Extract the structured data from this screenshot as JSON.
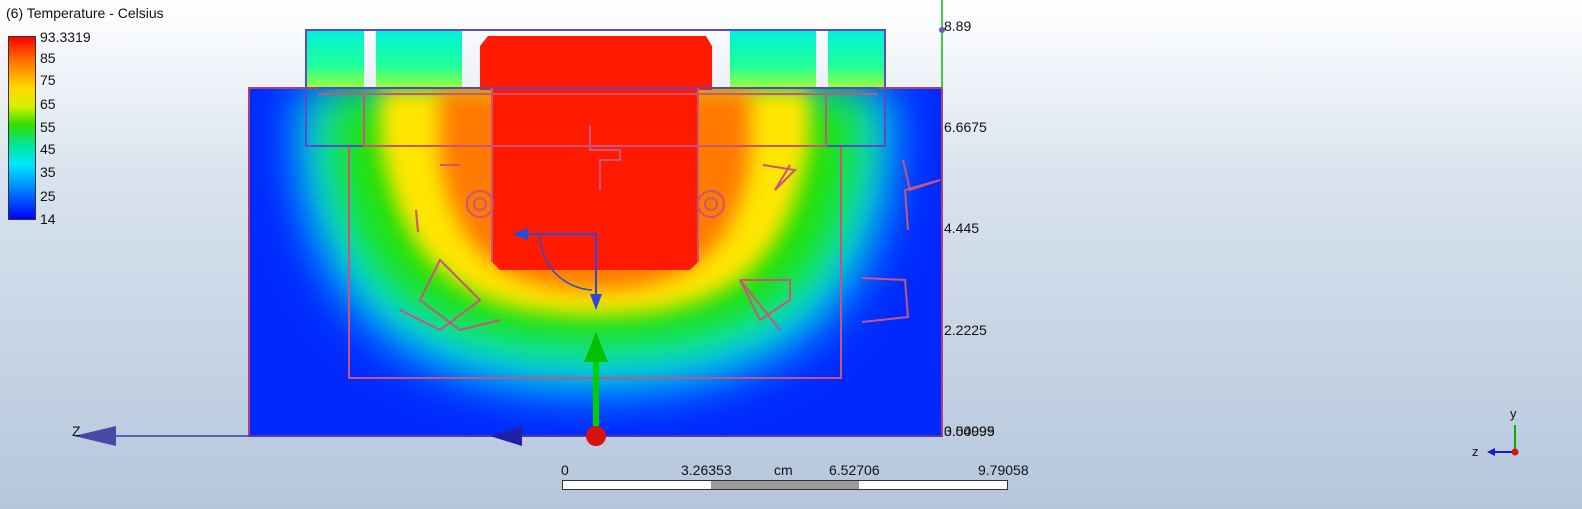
{
  "legend": {
    "title": "(6) Temperature - Celsius",
    "ticks": [
      "93.3319",
      "85",
      "75",
      "65",
      "55",
      "45",
      "35",
      "25",
      "14"
    ]
  },
  "y_axis_labels": [
    "8.89",
    "6.6675",
    "4.445",
    "2.2225",
    "0.00999",
    "3.54095"
  ],
  "scale_bar": {
    "labels": [
      "0",
      "3.26353",
      "cm",
      "6.52706",
      "9.79058"
    ]
  },
  "triad": {
    "y": "y",
    "z": "z"
  },
  "z_axis_label": "Z",
  "colors": {
    "hot": "#ff1a00",
    "cold": "#0029ff",
    "wireframe": "#c8557a",
    "background_top": "#ffffff",
    "background_bottom": "#b5c6dc"
  }
}
